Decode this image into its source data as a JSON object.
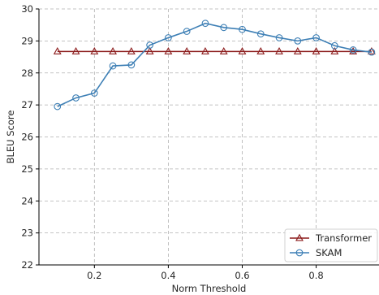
{
  "chart_data": {
    "type": "line",
    "title": "",
    "xlabel": "Norm Threshold",
    "ylabel": "BLEU Score",
    "xlim": [
      0.05,
      0.97
    ],
    "ylim": [
      22,
      30
    ],
    "xticks": [
      0.2,
      0.4,
      0.6,
      0.8
    ],
    "xtick_labels": [
      "0.2",
      "0.4",
      "0.6",
      "0.8"
    ],
    "yticks": [
      22,
      23,
      24,
      25,
      26,
      27,
      28,
      29,
      30
    ],
    "ytick_labels": [
      "22",
      "23",
      "24",
      "25",
      "26",
      "27",
      "28",
      "29",
      "30"
    ],
    "grid": true,
    "legend_position": "bottom-right",
    "x": [
      0.1,
      0.15,
      0.2,
      0.25,
      0.3,
      0.35,
      0.4,
      0.45,
      0.5,
      0.55,
      0.6,
      0.65,
      0.7,
      0.75,
      0.8,
      0.85,
      0.9,
      0.95
    ],
    "series": [
      {
        "name": "Transformer",
        "color": "#8b1a1a",
        "marker": "triangle",
        "values": [
          28.67,
          28.67,
          28.67,
          28.67,
          28.67,
          28.67,
          28.67,
          28.67,
          28.67,
          28.67,
          28.67,
          28.67,
          28.67,
          28.67,
          28.67,
          28.67,
          28.67,
          28.67
        ]
      },
      {
        "name": "SKAM",
        "color": "#3d7fb5",
        "marker": "circle",
        "values": [
          26.95,
          27.22,
          27.37,
          28.22,
          28.25,
          28.87,
          29.1,
          29.3,
          29.55,
          29.42,
          29.36,
          29.22,
          29.1,
          29.0,
          29.1,
          28.85,
          28.72,
          28.65
        ]
      }
    ]
  }
}
